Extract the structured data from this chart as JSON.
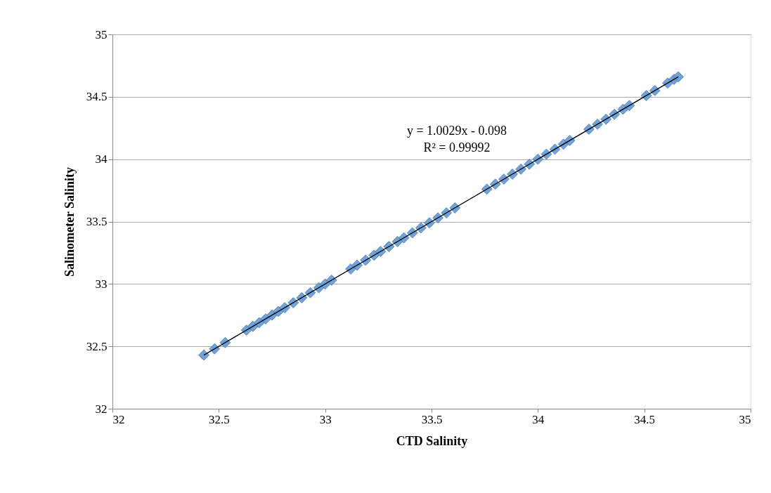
{
  "chart_data": {
    "type": "scatter",
    "xlabel": "CTD Salinity",
    "ylabel": "Salinometer Salinity",
    "x": [
      32.43,
      32.48,
      32.53,
      32.63,
      32.66,
      32.69,
      32.72,
      32.75,
      32.78,
      32.81,
      32.85,
      32.89,
      32.93,
      32.97,
      33.0,
      33.03,
      33.12,
      33.15,
      33.19,
      33.23,
      33.26,
      33.3,
      33.34,
      33.37,
      33.41,
      33.45,
      33.49,
      33.53,
      33.57,
      33.61,
      33.76,
      33.8,
      33.84,
      33.88,
      33.92,
      33.96,
      34.0,
      34.04,
      34.08,
      34.12,
      34.15,
      34.24,
      34.28,
      34.32,
      34.36,
      34.4,
      34.43,
      34.51,
      34.55,
      34.61,
      34.64,
      34.66
    ],
    "series": [
      {
        "color": "#6a9fd8",
        "marker": "diamond",
        "values": [
          32.43,
          32.48,
          32.53,
          32.63,
          32.66,
          32.69,
          32.72,
          32.75,
          32.78,
          32.81,
          32.85,
          32.89,
          32.93,
          32.97,
          33.0,
          33.03,
          33.12,
          33.15,
          33.19,
          33.23,
          33.26,
          33.3,
          33.34,
          33.37,
          33.41,
          33.45,
          33.49,
          33.53,
          33.57,
          33.61,
          33.76,
          33.8,
          33.84,
          33.88,
          33.92,
          33.96,
          34.0,
          34.04,
          34.08,
          34.12,
          34.15,
          34.24,
          34.28,
          34.32,
          34.36,
          34.4,
          34.43,
          34.51,
          34.55,
          34.61,
          34.64,
          34.66
        ]
      },
      {
        "type": "line",
        "color": "#000000",
        "x": [
          32.43,
          34.66
        ],
        "values": [
          32.43,
          34.66
        ]
      }
    ],
    "xlim": [
      32,
      35
    ],
    "xticks": [
      32,
      32.5,
      33,
      33.5,
      34,
      34.5,
      35
    ],
    "ylim": [
      32,
      35
    ],
    "yticks": [
      32,
      32.5,
      33,
      33.5,
      34,
      34.5,
      35
    ],
    "grid": "y",
    "annotations": [
      "y = 1.0029x - 0.098",
      "R² = 0.99992"
    ]
  }
}
